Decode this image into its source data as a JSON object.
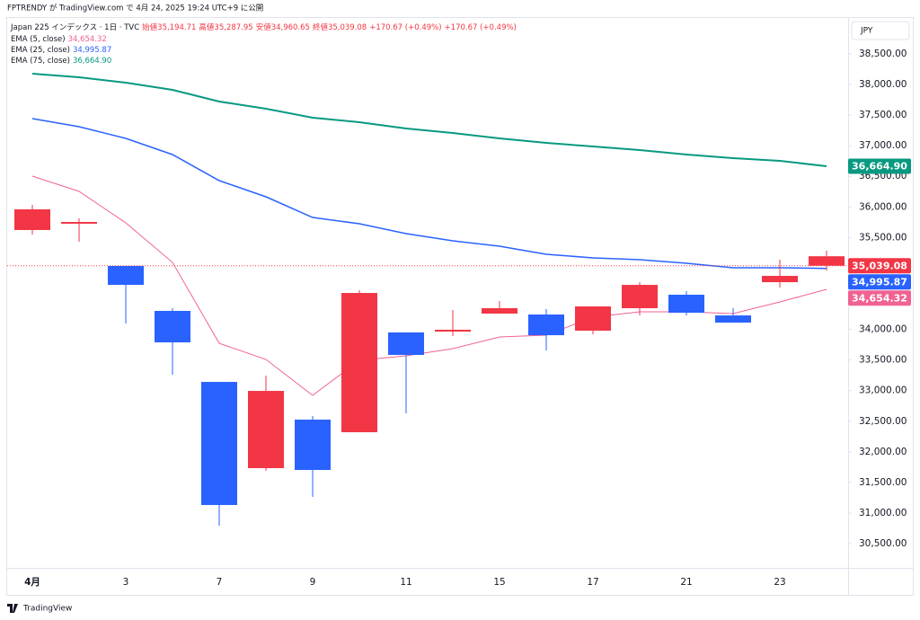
{
  "header": "FPTRENDY が TradingView.com で 4月 24, 2025 19:24 UTC+9 に公開",
  "footer": "TradingView",
  "chart_data": {
    "type": "candlestick",
    "title": "Japan 225 インデックス · 1日 · TVC",
    "info": [
      "始値35,194.71",
      "高値35,287.95",
      "安値34,960.65",
      "終値35,039.08",
      "+170.67 (+0.49%)",
      "+170.67 (+0.49%)"
    ],
    "currency": "JPY",
    "categories": [
      "4月",
      null,
      "3",
      null,
      "7",
      null,
      "9",
      null,
      "11",
      null,
      "15",
      null,
      "17",
      null,
      "21",
      null,
      "23",
      null
    ],
    "open": [
      35961,
      35755,
      34727,
      33788,
      31131,
      32995,
      31704,
      34595,
      33583,
      33994,
      34346,
      33905,
      34375,
      34727,
      34272,
      34111,
      34874,
      35194.71
    ],
    "high": [
      36034,
      35814,
      35036,
      34346,
      33142,
      33245,
      32584,
      34639,
      33950,
      34317,
      34463,
      34331,
      34375,
      34771,
      34625,
      34346,
      35138,
      35287.95
    ],
    "low": [
      35550,
      35432,
      34096,
      33260,
      30794,
      31689,
      31263,
      32320,
      32628,
      33891,
      34258,
      33656,
      33920,
      34228,
      34228,
      34111,
      34683,
      34960.65
    ],
    "close": [
      35623,
      35726,
      35036,
      34302,
      33142,
      31733,
      32526,
      32320,
      33950,
      33964,
      34258,
      34243,
      33979,
      34346,
      34566,
      34228,
      34771,
      35039.08
    ],
    "close_label": "35,039.08",
    "up_color": "#2962ff",
    "down_color": "#f23645",
    "series": [
      {
        "name": "EMA (5, close)",
        "color": "#f06292",
        "last_label": "34,654.32",
        "values": [
          36504,
          36254,
          35740,
          35094,
          33773,
          33509,
          32922,
          33494,
          33568,
          33685,
          33876,
          33905,
          34199,
          34287,
          34287,
          34258,
          34449,
          34654.32
        ]
      },
      {
        "name": "EMA (25, close)",
        "color": "#2962ff",
        "last_label": "34,995.87",
        "values": [
          37443,
          37311,
          37120,
          36856,
          36430,
          36166,
          35828,
          35726,
          35564,
          35447,
          35359,
          35227,
          35168,
          35139,
          35080,
          35007,
          35007,
          34995.87
        ]
      },
      {
        "name": "EMA (75, close)",
        "color": "#089981",
        "last_label": "36,664.90",
        "values": [
          38177,
          38118,
          38030,
          37913,
          37722,
          37605,
          37458,
          37384,
          37282,
          37208,
          37120,
          37047,
          36988,
          36929,
          36856,
          36797,
          36753,
          36664.9
        ]
      }
    ],
    "ylim": [
      30104,
      39087
    ],
    "yticks": [
      {
        "value": 30500,
        "label": "30,500.00"
      },
      {
        "value": 31000,
        "label": "31,000.00"
      },
      {
        "value": 31500,
        "label": "31,500.00"
      },
      {
        "value": 32000,
        "label": "32,000.00"
      },
      {
        "value": 32500,
        "label": "32,500.00"
      },
      {
        "value": 33000,
        "label": "33,000.00"
      },
      {
        "value": 33500,
        "label": "33,500.00"
      },
      {
        "value": 34000,
        "label": "34,000.00"
      },
      {
        "value": 34500,
        "label": "34,500.00"
      },
      {
        "value": 35000,
        "label": "35,000.00"
      },
      {
        "value": 35500,
        "label": "35,500.00"
      },
      {
        "value": 36000,
        "label": "36,000.00"
      },
      {
        "value": 36500,
        "label": "36,500.00"
      },
      {
        "value": 37000,
        "label": "37,000.00"
      },
      {
        "value": 37500,
        "label": "37,500.00"
      },
      {
        "value": 38000,
        "label": "38,000.00"
      },
      {
        "value": 38500,
        "label": "38,500.00"
      }
    ],
    "grid": false
  }
}
